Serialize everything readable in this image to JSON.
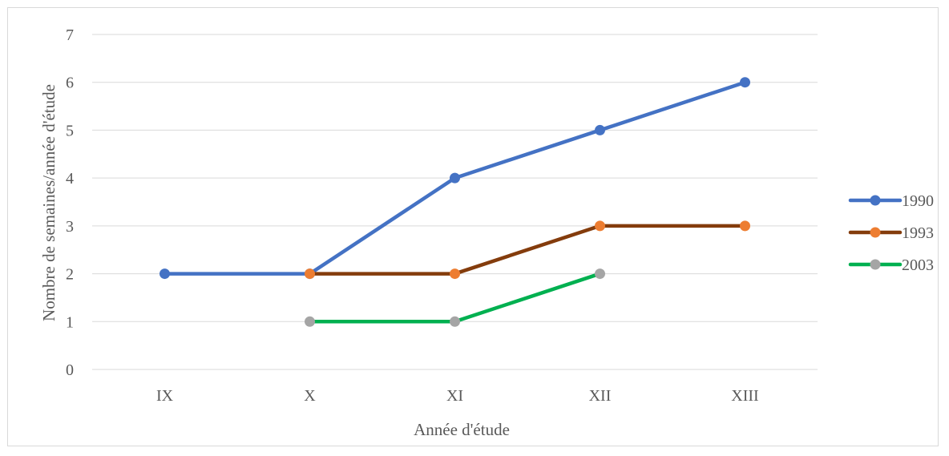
{
  "chart_data": {
    "type": "line",
    "title": "",
    "xlabel": "Année d'étude",
    "ylabel": "Nombre de semaines/année d'étude",
    "categories": [
      "IX",
      "X",
      "XI",
      "XII",
      "XIII"
    ],
    "ylim": [
      0,
      7
    ],
    "yticks": [
      0,
      1,
      2,
      3,
      4,
      5,
      6,
      7
    ],
    "grid": true,
    "legend_position": "right",
    "series": [
      {
        "name": "1990",
        "values": [
          2,
          2,
          4,
          5,
          6
        ],
        "line_color": "#4472c4",
        "marker_color": "#4472c4"
      },
      {
        "name": "1993",
        "values": [
          null,
          2,
          2,
          3,
          3
        ],
        "line_color": "#843c0c",
        "marker_color": "#ed7d31"
      },
      {
        "name": "2003",
        "values": [
          null,
          1,
          1,
          2,
          null
        ],
        "line_color": "#00b050",
        "marker_color": "#a5a5a5"
      }
    ]
  }
}
